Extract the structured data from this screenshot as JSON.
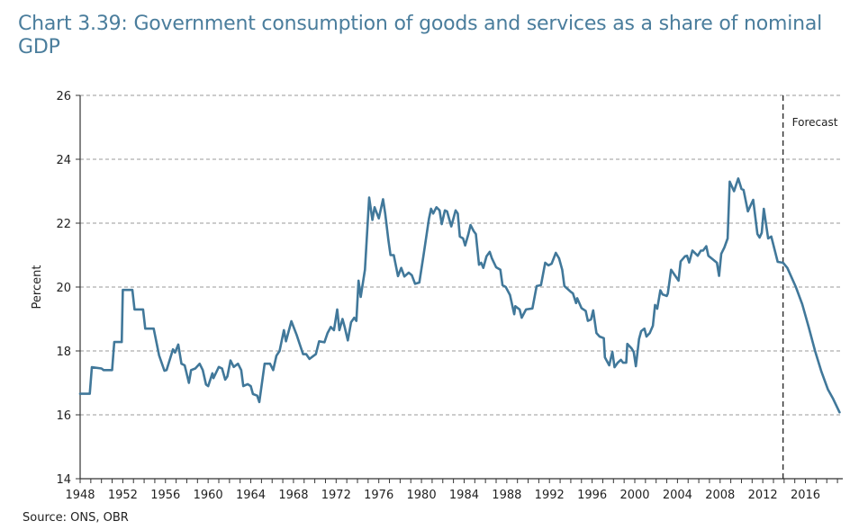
{
  "chart_data": {
    "type": "line",
    "title": "Chart 3.39: Government consumption of goods and services as a share of nominal GDP",
    "xlabel": "",
    "ylabel": "Percent",
    "xlim": [
      1948,
      2019.5
    ],
    "ylim": [
      14,
      26
    ],
    "yticks": [
      14,
      16,
      18,
      20,
      22,
      24,
      26
    ],
    "xticks": [
      1948,
      1952,
      1956,
      1960,
      1964,
      1968,
      1972,
      1976,
      1980,
      1984,
      1988,
      1992,
      1996,
      2000,
      2004,
      2008,
      2012,
      2016
    ],
    "xtick_labels": [
      "1948",
      "1952",
      "1956",
      "1960",
      "1964",
      "1968",
      "1972",
      "1976",
      "1980",
      "1984",
      "1988",
      "1992",
      "1996",
      "2000",
      "2004",
      "2008",
      "2012",
      "2016"
    ],
    "ytick_labels": [
      "14",
      "16",
      "18",
      "20",
      "22",
      "24",
      "26"
    ],
    "grid": "horizontal-dashed",
    "legend": "none",
    "series": [
      {
        "name": "Government consumption share of nominal GDP",
        "color": "#41789a",
        "x": [
          1948.0,
          1948.9,
          1949.1,
          1950.0,
          1950.2,
          1951.0,
          1951.2,
          1951.9,
          1952.0,
          1952.9,
          1953.1,
          1953.9,
          1954.1,
          1954.9,
          1955.4,
          1955.9,
          1956.1,
          1956.7,
          1956.9,
          1957.2,
          1957.5,
          1957.8,
          1958.2,
          1958.4,
          1958.8,
          1959.2,
          1959.5,
          1959.8,
          1960.0,
          1960.4,
          1960.5,
          1961.0,
          1961.3,
          1961.6,
          1961.8,
          1962.1,
          1962.4,
          1962.8,
          1963.1,
          1963.3,
          1963.7,
          1964.0,
          1964.2,
          1964.6,
          1964.8,
          1965.3,
          1965.8,
          1966.1,
          1966.4,
          1966.7,
          1967.1,
          1967.3,
          1967.8,
          1968.3,
          1968.6,
          1968.9,
          1969.2,
          1969.5,
          1969.9,
          1970.1,
          1970.4,
          1970.9,
          1971.2,
          1971.5,
          1971.8,
          1972.1,
          1972.3,
          1972.6,
          1972.8,
          1973.1,
          1973.4,
          1973.7,
          1973.9,
          1974.1,
          1974.3,
          1974.7,
          1975.1,
          1975.4,
          1975.6,
          1976.0,
          1976.4,
          1976.6,
          1976.9,
          1977.1,
          1977.4,
          1977.8,
          1978.1,
          1978.4,
          1978.8,
          1979.1,
          1979.4,
          1979.8,
          1980.2,
          1980.7,
          1980.9,
          1981.1,
          1981.4,
          1981.7,
          1981.9,
          1982.2,
          1982.4,
          1982.8,
          1983.2,
          1983.4,
          1983.6,
          1983.9,
          1984.1,
          1984.4,
          1984.6,
          1984.9,
          1985.1,
          1985.4,
          1985.6,
          1985.8,
          1986.1,
          1986.4,
          1986.6,
          1987.0,
          1987.4,
          1987.6,
          1987.9,
          1988.3,
          1988.7,
          1988.8,
          1989.2,
          1989.4,
          1989.8,
          1990.4,
          1990.8,
          1991.2,
          1991.6,
          1991.9,
          1992.2,
          1992.6,
          1992.9,
          1993.2,
          1993.4,
          1993.7,
          1994.0,
          1994.2,
          1994.5,
          1994.6,
          1995.0,
          1995.4,
          1995.6,
          1995.9,
          1996.1,
          1996.4,
          1996.7,
          1997.1,
          1997.2,
          1997.6,
          1997.9,
          1998.1,
          1998.4,
          1998.7,
          1998.9,
          1999.2,
          1999.3,
          1999.7,
          1999.9,
          2000.1,
          2000.4,
          2000.6,
          2000.9,
          2001.1,
          2001.4,
          2001.7,
          2001.9,
          2002.1,
          2002.4,
          2002.6,
          2003.0,
          2003.1,
          2003.4,
          2003.8,
          2004.1,
          2004.3,
          2004.7,
          2004.9,
          2005.1,
          2005.4,
          2005.6,
          2005.9,
          2006.2,
          2006.4,
          2006.7,
          2006.9,
          2007.3,
          2007.7,
          2007.9,
          2008.1,
          2008.4,
          2008.7,
          2008.9,
          2009.3,
          2009.7,
          2010.0,
          2010.2,
          2010.6,
          2011.1,
          2011.5,
          2011.7,
          2011.9,
          2012.1,
          2012.5,
          2012.8,
          2013.4,
          2013.9,
          2014.3,
          2015.1,
          2015.7,
          2016.3,
          2016.9,
          2017.5,
          2018.1,
          2018.6,
          2019.2
        ],
        "values": [
          16.66,
          16.66,
          17.49,
          17.45,
          17.4,
          17.4,
          18.28,
          18.28,
          19.91,
          19.91,
          19.3,
          19.3,
          18.7,
          18.7,
          17.86,
          17.38,
          17.4,
          18.05,
          17.95,
          18.2,
          17.6,
          17.55,
          17.0,
          17.4,
          17.45,
          17.6,
          17.4,
          16.95,
          16.9,
          17.3,
          17.15,
          17.5,
          17.45,
          17.1,
          17.2,
          17.7,
          17.5,
          17.6,
          17.4,
          16.9,
          16.96,
          16.9,
          16.65,
          16.6,
          16.4,
          17.6,
          17.6,
          17.4,
          17.85,
          18.0,
          18.65,
          18.3,
          18.93,
          18.5,
          18.2,
          17.9,
          17.9,
          17.75,
          17.85,
          17.9,
          18.3,
          18.27,
          18.56,
          18.75,
          18.65,
          19.3,
          18.65,
          19.0,
          18.75,
          18.33,
          18.9,
          19.04,
          18.94,
          20.2,
          19.69,
          20.54,
          22.8,
          22.1,
          22.5,
          22.15,
          22.75,
          22.3,
          21.46,
          21.0,
          21.0,
          20.34,
          20.6,
          20.33,
          20.45,
          20.37,
          20.1,
          20.14,
          21.0,
          22.14,
          22.45,
          22.3,
          22.5,
          22.4,
          21.97,
          22.4,
          22.37,
          21.9,
          22.4,
          22.3,
          21.58,
          21.52,
          21.3,
          21.66,
          21.94,
          21.75,
          21.66,
          20.7,
          20.76,
          20.6,
          20.96,
          21.1,
          20.9,
          20.62,
          20.54,
          20.06,
          20.0,
          19.75,
          19.15,
          19.4,
          19.3,
          19.04,
          19.3,
          19.33,
          20.03,
          20.06,
          20.76,
          20.68,
          20.73,
          21.07,
          20.9,
          20.54,
          20.03,
          19.94,
          19.85,
          19.8,
          19.5,
          19.65,
          19.34,
          19.25,
          18.94,
          18.99,
          19.27,
          18.56,
          18.45,
          18.4,
          17.8,
          17.55,
          17.97,
          17.49,
          17.63,
          17.72,
          17.63,
          17.63,
          18.22,
          18.08,
          17.97,
          17.52,
          18.37,
          18.62,
          18.7,
          18.45,
          18.56,
          18.79,
          19.44,
          19.32,
          19.9,
          19.77,
          19.72,
          19.8,
          20.54,
          20.35,
          20.2,
          20.8,
          20.96,
          20.98,
          20.77,
          21.14,
          21.08,
          20.98,
          21.14,
          21.14,
          21.28,
          20.98,
          20.87,
          20.76,
          20.35,
          21.04,
          21.24,
          21.52,
          23.3,
          23.0,
          23.4,
          23.07,
          23.04,
          22.37,
          22.73,
          21.66,
          21.55,
          21.7,
          22.45,
          21.52,
          21.58,
          20.79,
          20.76,
          20.6,
          20.0,
          19.46,
          18.75,
          18.0,
          17.35,
          16.8,
          16.5,
          16.08
        ]
      }
    ],
    "annotations": [
      {
        "type": "vertical-dashed-line",
        "x": 2013.9,
        "label": "Forecast",
        "label_side": "right"
      }
    ],
    "source": "Source: ONS, OBR"
  }
}
